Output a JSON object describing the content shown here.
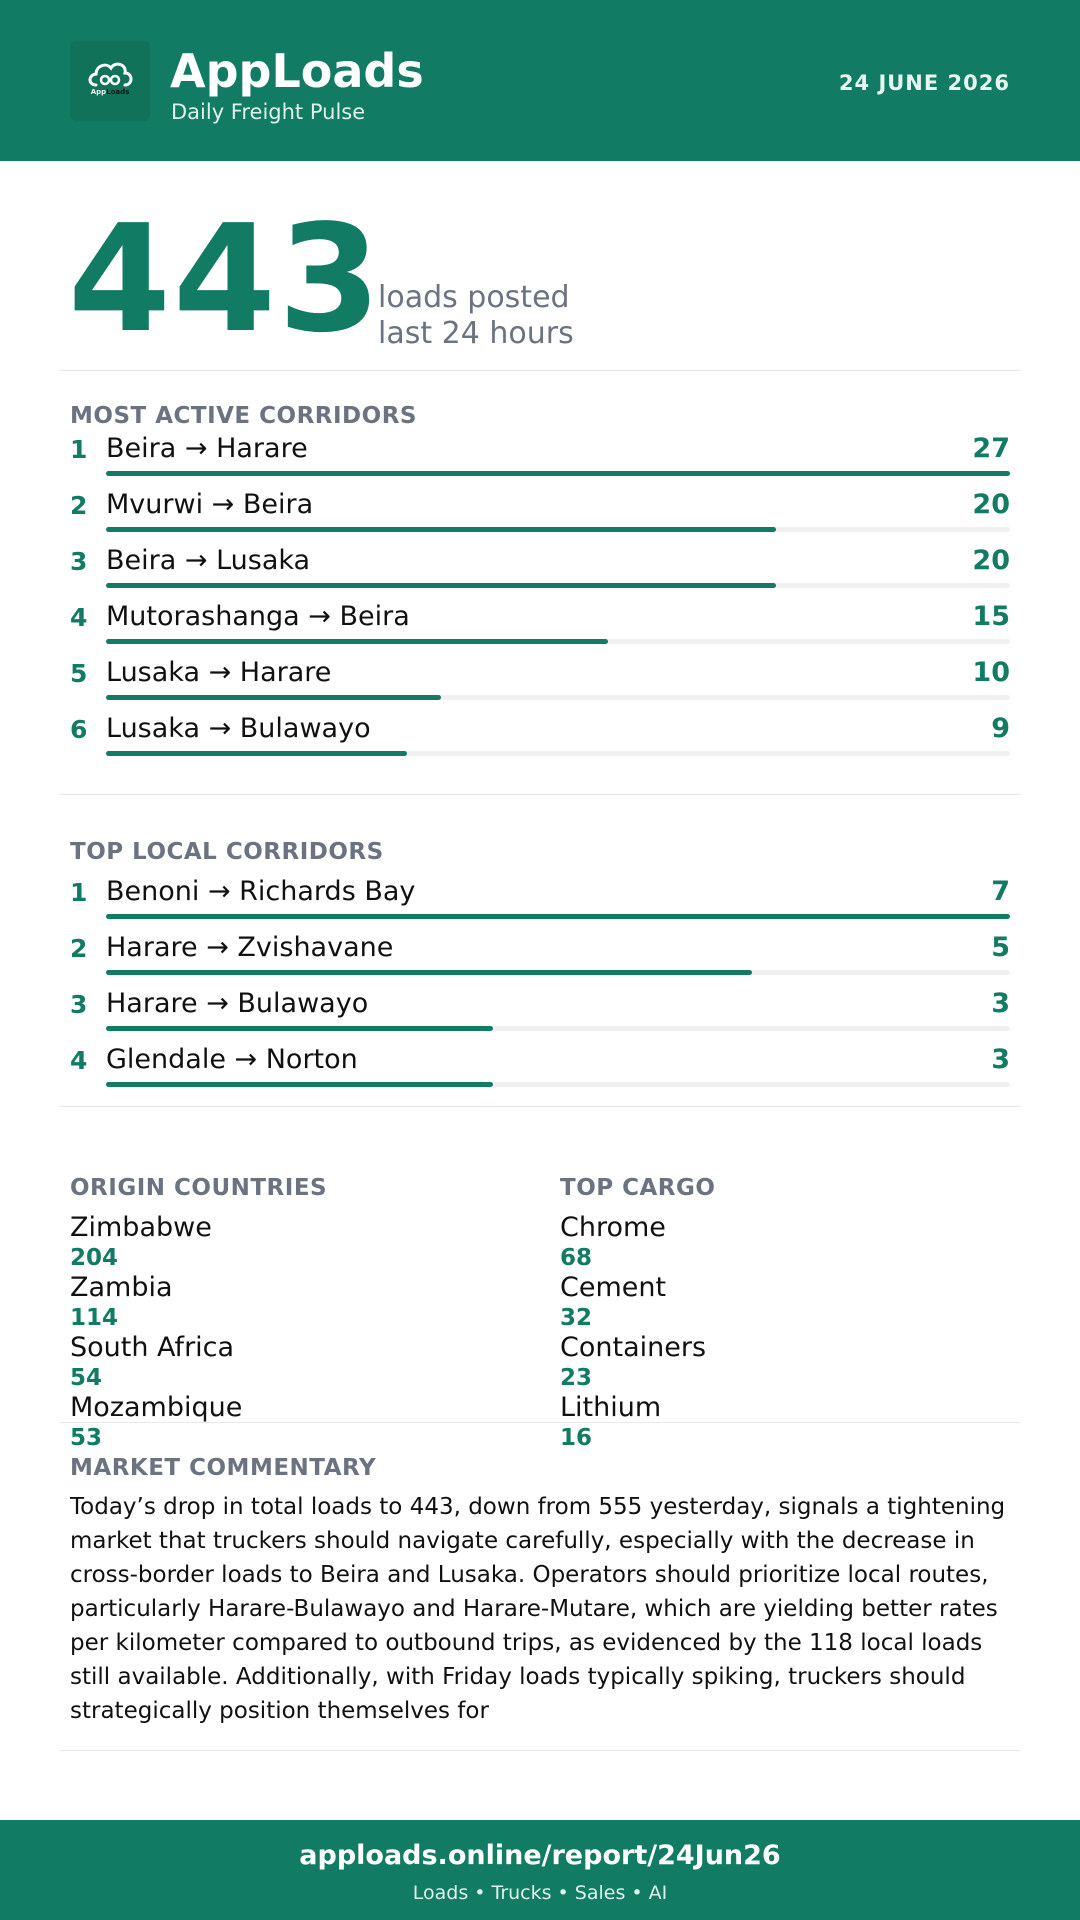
{
  "header": {
    "logo_name": "AppLoads",
    "logo_text_a": "App",
    "logo_text_b": "Loads",
    "app_name": "AppLoads",
    "subtitle": "Daily Freight Pulse",
    "date": "24 JUNE 2026",
    "bg_color": "#127b63",
    "logo_icon": "cloud-icon"
  },
  "hero": {
    "value": "443",
    "line1": "loads posted",
    "line2": "last 24 hours"
  },
  "active_corridors": {
    "title": "MOST ACTIVE CORRIDORS",
    "max": 27,
    "items": [
      {
        "rank": "1",
        "route": "Beira → Harare",
        "value": 27
      },
      {
        "rank": "2",
        "route": "Mvurwi → Beira",
        "value": 20
      },
      {
        "rank": "3",
        "route": "Beira → Lusaka",
        "value": 20
      },
      {
        "rank": "4",
        "route": "Mutorashanga → Beira",
        "value": 15
      },
      {
        "rank": "5",
        "route": "Lusaka → Harare",
        "value": 10
      },
      {
        "rank": "6",
        "route": "Lusaka → Bulawayo",
        "value": 9
      }
    ]
  },
  "local_corridors": {
    "title": "TOP LOCAL CORRIDORS",
    "max": 7,
    "items": [
      {
        "rank": "1",
        "route": "Benoni → Richards Bay",
        "value": 7
      },
      {
        "rank": "2",
        "route": "Harare → Zvishavane",
        "value": 5
      },
      {
        "rank": "3",
        "route": "Harare → Bulawayo",
        "value": 3
      },
      {
        "rank": "4",
        "route": "Glendale → Norton",
        "value": 3
      }
    ]
  },
  "origin_countries": {
    "title": "ORIGIN COUNTRIES",
    "items": [
      {
        "label": "Zimbabwe",
        "value": "204"
      },
      {
        "label": "Zambia",
        "value": "114"
      },
      {
        "label": "South Africa",
        "value": "54"
      },
      {
        "label": "Mozambique",
        "value": "53"
      }
    ]
  },
  "top_cargo": {
    "title": "TOP CARGO",
    "items": [
      {
        "label": "Chrome",
        "value": "68"
      },
      {
        "label": "Cement",
        "value": "32"
      },
      {
        "label": "Containers",
        "value": "23"
      },
      {
        "label": "Lithium",
        "value": "16"
      }
    ]
  },
  "commentary": {
    "title": "MARKET COMMENTARY",
    "text": "Today’s drop in total loads to 443, down from 555 yesterday, signals a tightening market that truckers should navigate carefully, especially with the decrease in cross-border loads to Beira and Lusaka. Operators should prioritize local routes, particularly Harare-Bulawayo and Harare-Mutare, which are yielding better rates per kilometer compared to outbound trips, as evidenced by the 118 local loads still available. Additionally, with Friday loads typically spiking, truckers should strategically position themselves for"
  },
  "footer": {
    "url": "apploads.online/report/24Jun26",
    "tagline": "Loads • Trucks • Sales • AI"
  }
}
